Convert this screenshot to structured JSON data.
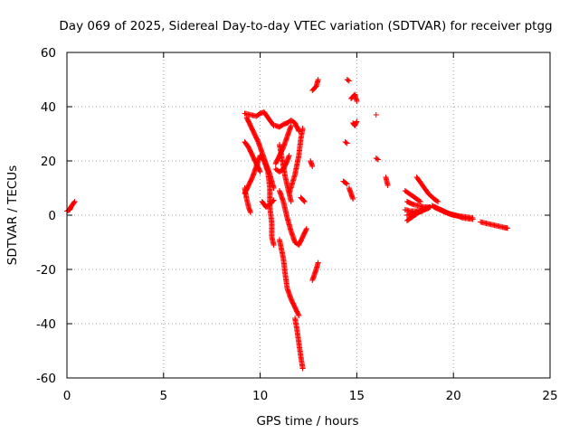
{
  "chart_data": {
    "type": "scatter",
    "title": "Day 069 of 2025, Sidereal Day-to-day VTEC variation (SDTVAR) for receiver ptgg",
    "xlabel": "GPS time / hours",
    "ylabel": "SDTVAR / TECUs",
    "xlim": [
      0,
      25
    ],
    "ylim": [
      -60,
      60
    ],
    "xticks": [
      0,
      5,
      10,
      15,
      20,
      25
    ],
    "yticks": [
      -60,
      -40,
      -20,
      0,
      20,
      40,
      60
    ],
    "grid": true,
    "marker": "+",
    "color": "#ff0000",
    "series": [
      {
        "name": "SDTVAR",
        "segments": [
          [
            [
              0.0,
              1.5
            ],
            [
              0.15,
              2.0
            ],
            [
              0.2,
              3.0
            ],
            [
              0.3,
              4.0
            ],
            [
              0.4,
              5.0
            ]
          ],
          [
            [
              9.2,
              37.5
            ],
            [
              9.5,
              37.0
            ],
            [
              9.8,
              36.5
            ],
            [
              10.0,
              37.5
            ],
            [
              10.2,
              38.0
            ],
            [
              10.4,
              36.0
            ],
            [
              10.7,
              33.0
            ]
          ],
          [
            [
              9.2,
              27.0
            ],
            [
              9.4,
              25.0
            ],
            [
              9.6,
              22.0
            ],
            [
              9.8,
              19.0
            ],
            [
              10.0,
              16.0
            ]
          ],
          [
            [
              9.3,
              36.0
            ],
            [
              9.5,
              33.0
            ],
            [
              9.7,
              30.0
            ],
            [
              9.9,
              27.0
            ],
            [
              10.1,
              23.0
            ],
            [
              10.3,
              19.0
            ],
            [
              10.5,
              15.0
            ],
            [
              10.7,
              10.0
            ]
          ],
          [
            [
              9.2,
              8.0
            ],
            [
              9.4,
              11.0
            ],
            [
              9.6,
              14.0
            ],
            [
              9.8,
              18.0
            ],
            [
              10.0,
              22.0
            ],
            [
              10.2,
              20.0
            ],
            [
              10.4,
              16.0
            ],
            [
              10.5,
              10.0
            ],
            [
              10.5,
              3.0
            ],
            [
              10.6,
              -3.0
            ],
            [
              10.6,
              -8.0
            ],
            [
              10.7,
              -11.0
            ]
          ],
          [
            [
              9.2,
              10.0
            ],
            [
              9.3,
              6.0
            ],
            [
              9.4,
              3.0
            ],
            [
              9.5,
              1.0
            ]
          ],
          [
            [
              10.1,
              5.0
            ],
            [
              10.3,
              3.0
            ],
            [
              10.5,
              4.0
            ],
            [
              10.7,
              5.5
            ]
          ],
          [
            [
              10.8,
              33.0
            ],
            [
              11.0,
              32.5
            ],
            [
              11.2,
              33.5
            ],
            [
              11.4,
              34.0
            ],
            [
              11.6,
              35.0
            ],
            [
              11.8,
              34.0
            ],
            [
              12.0,
              31.0
            ]
          ],
          [
            [
              10.8,
              19.0
            ],
            [
              11.0,
              22.0
            ],
            [
              11.2,
              25.0
            ],
            [
              11.4,
              29.0
            ],
            [
              11.6,
              33.0
            ]
          ],
          [
            [
              11.0,
              26.0
            ],
            [
              11.1,
              22.0
            ],
            [
              11.2,
              18.0
            ],
            [
              11.3,
              14.0
            ],
            [
              11.4,
              11.0
            ],
            [
              11.5,
              8.0
            ],
            [
              11.6,
              5.0
            ]
          ],
          [
            [
              10.8,
              17.0
            ],
            [
              11.0,
              16.0
            ],
            [
              11.2,
              17.0
            ],
            [
              11.4,
              20.0
            ],
            [
              11.5,
              22.0
            ]
          ],
          [
            [
              11.5,
              8.0
            ],
            [
              11.8,
              15.0
            ],
            [
              12.0,
              22.0
            ],
            [
              12.1,
              28.0
            ],
            [
              12.2,
              32.0
            ]
          ],
          [
            [
              11.0,
              9.0
            ],
            [
              11.2,
              5.0
            ],
            [
              11.4,
              -1.0
            ],
            [
              11.6,
              -6.0
            ],
            [
              11.8,
              -10.0
            ],
            [
              12.0,
              -11.0
            ],
            [
              12.2,
              -8.0
            ],
            [
              12.4,
              -5.0
            ]
          ],
          [
            [
              11.0,
              -9.0
            ],
            [
              11.2,
              -16.0
            ],
            [
              11.3,
              -22.0
            ],
            [
              11.4,
              -27.0
            ],
            [
              11.6,
              -31.0
            ],
            [
              11.8,
              -34.0
            ],
            [
              12.0,
              -37.0
            ]
          ],
          [
            [
              11.8,
              -38.0
            ],
            [
              11.9,
              -42.0
            ],
            [
              12.0,
              -47.0
            ],
            [
              12.1,
              -52.0
            ],
            [
              12.2,
              -56.5
            ]
          ],
          [
            [
              12.1,
              6.5
            ],
            [
              12.3,
              5.0
            ]
          ],
          [
            [
              12.6,
              20.0
            ],
            [
              12.7,
              18.0
            ]
          ],
          [
            [
              12.7,
              46.0
            ],
            [
              12.9,
              47.5
            ],
            [
              13.0,
              50.0
            ]
          ],
          [
            [
              12.7,
              -24.0
            ],
            [
              12.8,
              -22.0
            ],
            [
              12.9,
              -20.0
            ],
            [
              13.0,
              -17.5
            ]
          ],
          [
            [
              14.3,
              12.5
            ],
            [
              14.5,
              11.5
            ]
          ],
          [
            [
              14.4,
              27.0
            ],
            [
              14.5,
              26.5
            ]
          ],
          [
            [
              14.5,
              50.0
            ],
            [
              14.6,
              49.5
            ]
          ],
          [
            [
              14.6,
              10.0
            ],
            [
              14.7,
              8.0
            ],
            [
              14.8,
              6.0
            ]
          ],
          [
            [
              14.7,
              43.0
            ],
            [
              14.9,
              44.5
            ],
            [
              15.0,
              42.0
            ]
          ],
          [
            [
              14.8,
              34.0
            ],
            [
              14.9,
              33.0
            ],
            [
              15.0,
              34.5
            ]
          ],
          [
            [
              16.0,
              37.0
            ]
          ],
          [
            [
              16.0,
              21.0
            ],
            [
              16.1,
              20.5
            ]
          ],
          [
            [
              16.5,
              14.0
            ],
            [
              16.6,
              11.0
            ]
          ],
          [
            [
              17.5,
              9.0
            ],
            [
              17.7,
              8.0
            ],
            [
              17.9,
              7.0
            ],
            [
              18.1,
              6.0
            ],
            [
              18.3,
              5.0
            ]
          ],
          [
            [
              17.6,
              -2.0
            ],
            [
              17.9,
              -0.5
            ],
            [
              18.2,
              1.0
            ],
            [
              18.5,
              2.0
            ],
            [
              18.8,
              3.0
            ]
          ],
          [
            [
              17.6,
              5.0
            ],
            [
              17.9,
              4.0
            ],
            [
              18.2,
              3.5
            ],
            [
              18.5,
              3.0
            ],
            [
              18.8,
              3.0
            ]
          ],
          [
            [
              17.5,
              2.0
            ],
            [
              17.8,
              1.5
            ],
            [
              18.1,
              1.5
            ],
            [
              18.4,
              2.0
            ],
            [
              18.7,
              2.5
            ]
          ],
          [
            [
              17.6,
              0.0
            ],
            [
              18.0,
              0.8
            ],
            [
              18.4,
              1.5
            ]
          ],
          [
            [
              18.1,
              14.0
            ],
            [
              18.4,
              11.0
            ],
            [
              18.7,
              8.0
            ],
            [
              19.0,
              6.0
            ],
            [
              19.2,
              5.0
            ]
          ],
          [
            [
              18.9,
              3.5
            ],
            [
              19.2,
              2.5
            ],
            [
              19.5,
              1.5
            ],
            [
              19.8,
              0.5
            ],
            [
              20.1,
              0.0
            ],
            [
              20.5,
              -1.0
            ],
            [
              21.0,
              -1.5
            ]
          ],
          [
            [
              19.0,
              3.0
            ],
            [
              19.3,
              2.0
            ],
            [
              19.6,
              1.0
            ],
            [
              20.0,
              0.0
            ],
            [
              20.5,
              -0.5
            ],
            [
              21.0,
              -1.0
            ]
          ],
          [
            [
              21.4,
              -2.5
            ],
            [
              21.7,
              -3.0
            ],
            [
              22.0,
              -3.5
            ],
            [
              22.3,
              -4.0
            ],
            [
              22.6,
              -4.5
            ],
            [
              22.8,
              -4.8
            ]
          ]
        ]
      }
    ]
  }
}
